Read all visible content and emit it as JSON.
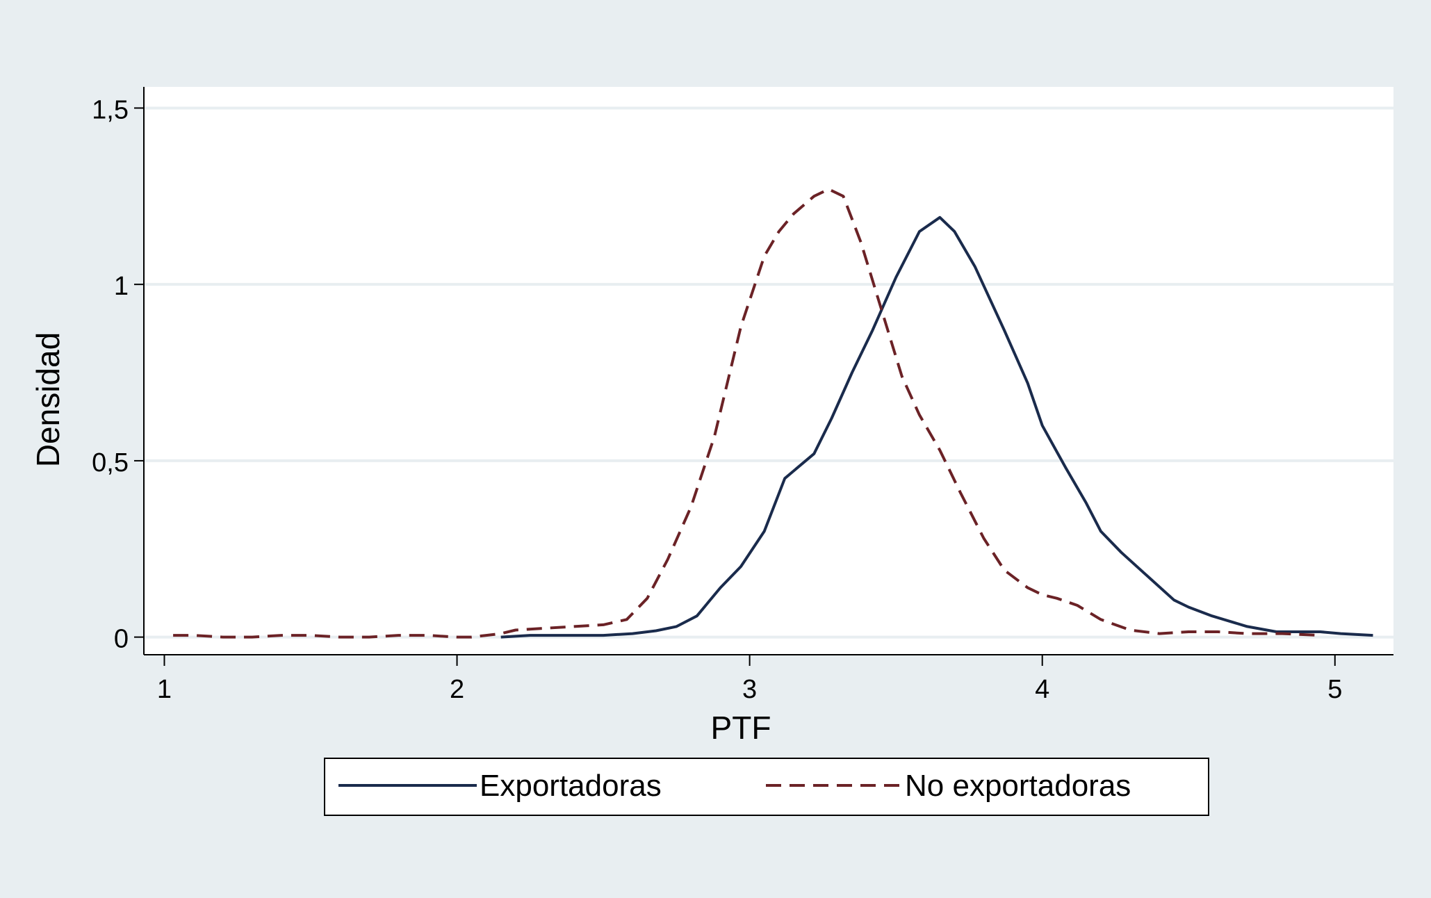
{
  "chart_data": {
    "type": "line",
    "xlabel": "PTF",
    "ylabel": "Densidad",
    "xlim": [
      0.93,
      5.2
    ],
    "ylim": [
      -0.05,
      1.56
    ],
    "x_ticks": [
      1,
      2,
      3,
      4,
      5
    ],
    "x_tick_labels": [
      "1",
      "2",
      "3",
      "4",
      "5"
    ],
    "y_ticks": [
      0,
      0.5,
      1,
      1.5
    ],
    "y_tick_labels": [
      "0",
      "0,5",
      "1",
      "1,5"
    ],
    "grid": true,
    "legend_position": "bottom",
    "colors": {
      "background": "#e8eef1",
      "plot_area": "#ffffff",
      "gridline": "#e8eef1",
      "axis": "#000000"
    },
    "series": [
      {
        "name": "Exportadoras",
        "color": "#1a2b4c",
        "style": "solid",
        "x": [
          2.15,
          2.25,
          2.4,
          2.5,
          2.6,
          2.68,
          2.75,
          2.82,
          2.9,
          2.97,
          3.05,
          3.12,
          3.22,
          3.28,
          3.35,
          3.42,
          3.5,
          3.58,
          3.65,
          3.7,
          3.77,
          3.87,
          3.95,
          4.0,
          4.08,
          4.15,
          4.2,
          4.27,
          4.35,
          4.45,
          4.5,
          4.58,
          4.7,
          4.8,
          4.95,
          5.02,
          5.13
        ],
        "y": [
          0.0,
          0.005,
          0.005,
          0.005,
          0.01,
          0.018,
          0.03,
          0.06,
          0.14,
          0.2,
          0.3,
          0.45,
          0.52,
          0.62,
          0.75,
          0.87,
          1.02,
          1.15,
          1.19,
          1.15,
          1.05,
          0.87,
          0.72,
          0.6,
          0.48,
          0.38,
          0.3,
          0.24,
          0.18,
          0.105,
          0.085,
          0.06,
          0.03,
          0.015,
          0.015,
          0.01,
          0.005
        ]
      },
      {
        "name": "No exportadoras",
        "color": "#6b2226",
        "style": "dashed",
        "x": [
          1.03,
          1.1,
          1.2,
          1.3,
          1.4,
          1.5,
          1.6,
          1.7,
          1.8,
          1.9,
          2.0,
          2.05,
          2.1,
          2.15,
          2.2,
          2.3,
          2.4,
          2.5,
          2.58,
          2.65,
          2.72,
          2.8,
          2.88,
          2.97,
          3.05,
          3.1,
          3.15,
          3.22,
          3.27,
          3.32,
          3.38,
          3.45,
          3.52,
          3.58,
          3.65,
          3.72,
          3.8,
          3.87,
          3.95,
          4.0,
          4.05,
          4.12,
          4.2,
          4.3,
          4.4,
          4.5,
          4.6,
          4.7,
          4.82,
          4.95
        ],
        "y": [
          0.005,
          0.005,
          0.0,
          0.0,
          0.005,
          0.005,
          0.0,
          0.0,
          0.005,
          0.005,
          0.0,
          0.0,
          0.005,
          0.01,
          0.02,
          0.025,
          0.03,
          0.035,
          0.05,
          0.11,
          0.22,
          0.37,
          0.57,
          0.88,
          1.08,
          1.15,
          1.2,
          1.25,
          1.27,
          1.25,
          1.12,
          0.93,
          0.74,
          0.63,
          0.53,
          0.41,
          0.28,
          0.19,
          0.14,
          0.12,
          0.11,
          0.09,
          0.05,
          0.02,
          0.01,
          0.015,
          0.015,
          0.01,
          0.01,
          0.005
        ]
      }
    ]
  }
}
